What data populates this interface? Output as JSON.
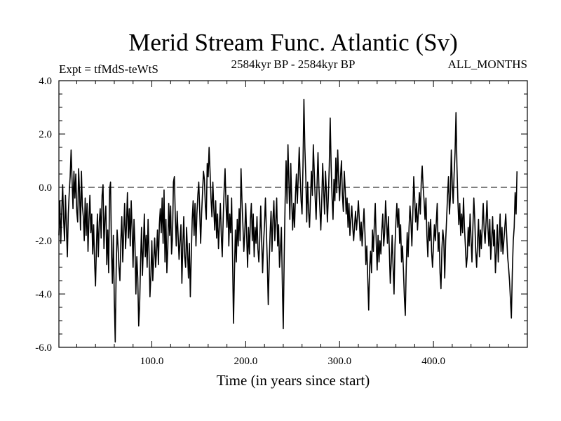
{
  "chart_data": {
    "type": "line",
    "title": "Merid Stream Func. Atlantic (Sv)",
    "subtitle_left": "Expt = tfMdS-teWtS",
    "subtitle_center": "2584kyr BP - 2584kyr BP",
    "subtitle_right": "ALL_MONTHS",
    "xlabel": "Time (in years since start)",
    "ylabel": "",
    "xlim": [
      1,
      500
    ],
    "ylim": [
      -6,
      4
    ],
    "x_ticks": [
      100,
      200,
      300,
      400
    ],
    "x_tick_labels": [
      "100.0",
      "200.0",
      "300.0",
      "400.0"
    ],
    "y_ticks": [
      4,
      2,
      0,
      -2,
      -4,
      -6
    ],
    "y_tick_labels": [
      "4.0",
      "2.0",
      "0.0",
      "-2.0",
      "-4.0",
      "-6.0"
    ],
    "reference_line": 0,
    "grid": false,
    "legend": "none",
    "series": [
      {
        "name": "Merid Stream Func. Atlantic",
        "x_start": 1,
        "x_step": 1,
        "color": "#000000",
        "values": [
          -1.8,
          -0.5,
          -2.1,
          -0.9,
          0.1,
          -1.2,
          -2.0,
          -0.3,
          -1.5,
          -2.6,
          -1.0,
          -0.2,
          0.4,
          1.4,
          0.3,
          -0.8,
          0.6,
          -0.4,
          0.5,
          -0.9,
          -1.3,
          0.7,
          -0.2,
          -1.6,
          0.6,
          -0.7,
          -1.1,
          -2.0,
          -0.4,
          -1.8,
          -0.6,
          -2.4,
          -1.2,
          -0.3,
          -1.7,
          -1.0,
          -2.5,
          -1.4,
          -2.8,
          -3.7,
          -2.2,
          -1.0,
          -2.6,
          -1.3,
          -0.8,
          -1.9,
          -0.3,
          0.1,
          -2.3,
          -1.2,
          -0.7,
          -2.9,
          -1.6,
          -3.2,
          -0.1,
          0.2,
          -2.4,
          -3.6,
          -1.8,
          -4.2,
          -5.8,
          -3.1,
          -1.6,
          -2.2,
          -3.0,
          -3.5,
          -2.0,
          -1.1,
          -2.8,
          -1.7,
          -0.6,
          -2.3,
          -1.4,
          -0.2,
          -1.9,
          -0.8,
          -2.2,
          -0.5,
          -1.6,
          -3.0,
          -1.2,
          -2.1,
          -4.0,
          -2.6,
          -3.4,
          -5.2,
          -4.4,
          -2.8,
          -1.5,
          -3.3,
          -2.2,
          -1.0,
          -2.6,
          -1.8,
          -3.0,
          -1.2,
          -2.4,
          -4.1,
          -3.3,
          -2.0,
          -3.5,
          -2.7,
          -1.9,
          -3.0,
          -2.4,
          -1.6,
          -2.9,
          -1.4,
          -0.8,
          -1.7,
          -0.4,
          -2.1,
          -0.1,
          -2.8,
          -1.2,
          -3.2,
          -2.3,
          -0.6,
          -1.8,
          -0.7,
          -2.5,
          -1.9,
          0.2,
          0.4,
          -1.1,
          -2.2,
          -0.9,
          -1.8,
          -2.7,
          -2.0,
          -1.4,
          -3.6,
          -2.2,
          -1.1,
          -2.6,
          -3.0,
          -1.5,
          -2.4,
          -3.4,
          -2.1,
          -4.1,
          -2.6,
          -1.2,
          -0.5,
          -1.8,
          -0.6,
          -2.2,
          -1.0,
          -0.3,
          0.2,
          -0.9,
          -2.1,
          -1.0,
          -0.2,
          0.6,
          0.3,
          -0.7,
          -1.2,
          0.9,
          0.4,
          1.5,
          0.6,
          -0.4,
          -1.1,
          0.2,
          -0.8,
          -1.6,
          -0.5,
          -1.9,
          -1.0,
          -2.3,
          -1.4,
          -0.6,
          -1.8,
          -2.6,
          -1.2,
          -0.1,
          0.7,
          -0.6,
          -1.5,
          -0.3,
          -2.2,
          -1.0,
          -1.7,
          -0.4,
          -2.7,
          -5.1,
          -3.2,
          -1.6,
          -2.8,
          -1.2,
          -2.2,
          -0.8,
          -2.0,
          0.7,
          -0.5,
          -1.4,
          -2.4,
          -1.7,
          -0.6,
          -1.8,
          -3.0,
          -1.5,
          -2.5,
          -1.2,
          -0.6,
          -2.0,
          -1.0,
          -2.6,
          -1.5,
          -2.1,
          -1.1,
          -2.3,
          -2.8,
          -1.9,
          -0.7,
          -2.0,
          -3.2,
          -2.1,
          -1.4,
          -0.4,
          -1.6,
          -2.8,
          -4.4,
          -2.9,
          -1.7,
          -0.9,
          -2.4,
          -1.2,
          -0.5,
          -2.0,
          -1.3,
          -0.4,
          -2.2,
          -1.4,
          -3.0,
          -2.3,
          -1.5,
          -3.6,
          -5.3,
          -2.6,
          -0.5,
          1.0,
          -0.6,
          1.6,
          0.2,
          -1.2,
          0.9,
          -0.5,
          -1.6,
          -0.6,
          -1.5,
          -0.3,
          0.5,
          -0.6,
          0.4,
          1.5,
          0.4,
          -0.5,
          -1.0,
          0.8,
          3.3,
          1.5,
          0.4,
          -1.3,
          0.2,
          -0.9,
          -1.5,
          -0.4,
          0.6,
          -0.3,
          1.6,
          0.6,
          -0.4,
          -1.2,
          0.1,
          1.3,
          0.0,
          -0.8,
          -1.6,
          -0.5,
          0.9,
          -0.1,
          -1.0,
          0.6,
          -0.2,
          -1.3,
          -0.4,
          0.8,
          2.6,
          0.8,
          -0.4,
          -1.2,
          0.3,
          -0.5,
          1.1,
          -0.2,
          1.4,
          0.3,
          -0.5,
          0.4,
          1.0,
          -0.3,
          -0.9,
          0.6,
          -0.1,
          -1.0,
          -0.4,
          -1.5,
          -0.6,
          -1.8,
          -1.2,
          -0.7,
          -1.5,
          -2.0,
          -1.4,
          -0.9,
          -1.6,
          -1.1,
          -0.5,
          -1.2,
          -2.0,
          -1.3,
          -2.2,
          -1.5,
          -0.8,
          -1.7,
          -2.9,
          -2.2,
          -3.4,
          -4.6,
          -3.0,
          -2.4,
          -3.2,
          -1.6,
          -2.4,
          -1.4,
          -0.6,
          -2.0,
          -3.1,
          -1.8,
          -2.8,
          -2.0,
          -2.5,
          -1.6,
          -1.0,
          -2.2,
          -1.7,
          -0.5,
          -1.3,
          -2.1,
          -1.1,
          -2.4,
          -3.6,
          -2.8,
          -1.8,
          -3.0,
          -4.0,
          -2.2,
          -1.3,
          -0.6,
          -1.5,
          -0.8,
          -2.1,
          -1.4,
          -2.8,
          -2.2,
          -3.1,
          -4.1,
          -4.8,
          -3.0,
          -1.7,
          -2.6,
          -1.5,
          -0.7,
          -1.3,
          -2.2,
          -1.0,
          0.4,
          -0.4,
          -1.3,
          -0.6,
          -1.6,
          -0.9,
          -0.2,
          -1.0,
          0.2,
          0.8,
          0.0,
          -0.5,
          -1.2,
          -0.4,
          -1.8,
          -2.6,
          -1.3,
          -2.0,
          -1.2,
          -2.4,
          -3.0,
          -2.2,
          -1.4,
          -2.0,
          -1.3,
          -0.6,
          -2.4,
          -1.7,
          -3.2,
          -3.8,
          -2.3,
          -1.6,
          -2.0,
          -3.4,
          -2.0,
          -1.2,
          -0.3,
          0.4,
          -1.0,
          -0.4,
          1.4,
          0.1,
          -0.6,
          0.5,
          1.3,
          2.8,
          0.8,
          -0.5,
          -1.4,
          -0.6,
          -1.8,
          -1.0,
          -1.7,
          -0.4,
          -1.5,
          -2.2,
          -3.0,
          -2.6,
          -1.5,
          -2.2,
          -1.0,
          -1.9,
          -2.8,
          -1.5,
          -0.4,
          -1.2,
          -2.4,
          -3.0,
          -2.0,
          -1.2,
          -2.6,
          -1.6,
          -2.3,
          -1.4,
          -0.6,
          -1.6,
          -2.1,
          -1.3,
          -0.5,
          -1.5,
          -2.2,
          -1.2,
          -2.7,
          -2.0,
          -1.1,
          -2.2,
          -1.6,
          -3.2,
          -2.4,
          -1.4,
          -2.8,
          -1.9,
          -1.0,
          -2.4,
          -1.5,
          -2.5,
          -2.0,
          -1.5,
          -1.0,
          -1.8,
          -2.6,
          -3.0,
          -3.5,
          -4.2,
          -4.9,
          -3.2,
          -2.0,
          -1.5,
          -0.2,
          -1.0,
          0.6
        ]
      }
    ]
  }
}
